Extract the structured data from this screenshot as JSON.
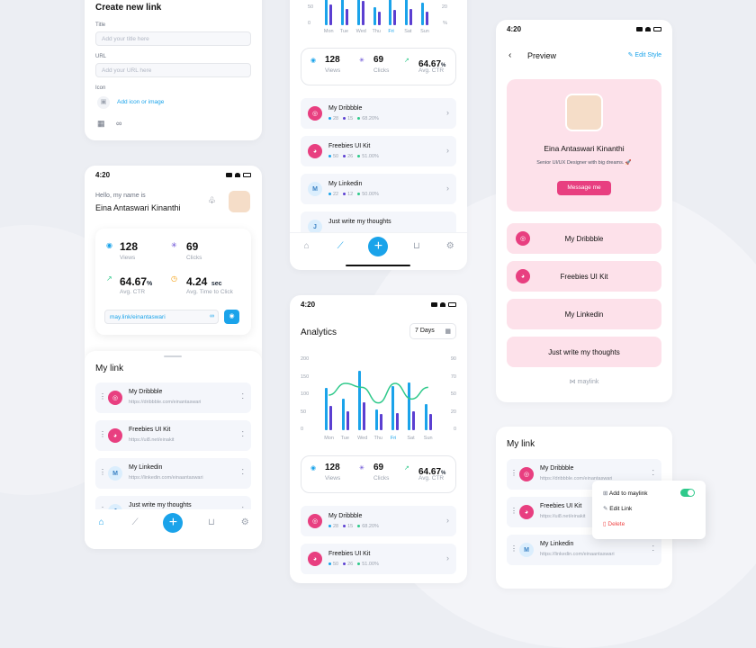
{
  "create": {
    "title": "Create new link",
    "title_label": "Title",
    "title_placeholder": "Add your title here",
    "url_label": "URL",
    "url_placeholder": "Add your URL here",
    "icon_label": "Icon",
    "add_icon": "Add icon or image"
  },
  "status_time": "4:20",
  "home": {
    "hello": "Hello, my name is",
    "name": "Eina Antaswari Kinanthi",
    "stats": {
      "views": "128",
      "views_label": "Views",
      "clicks": "69",
      "clicks_label": "Clicks",
      "ctr": "64.67",
      "ctr_unit": "%",
      "ctr_label": "Avg. CTR",
      "time": "4.24",
      "time_unit": "sec",
      "time_label": "Avg. Time to Click"
    },
    "url": "may.link/einantaswari",
    "mylink_title": "My link"
  },
  "links": [
    {
      "title": "My Dribbble",
      "url": "https://dribbble.com/einantaswari",
      "icon": "dribbble-icon",
      "a": "28",
      "b": "15",
      "c": "68.20%"
    },
    {
      "title": "Freebies UI Kit",
      "url": "https://ui8.net/einakit",
      "icon": "ui8-icon",
      "a": "50",
      "b": "26",
      "c": "51.00%"
    },
    {
      "title": "My Linkedin",
      "url": "https://linkedin.com/einaantaswari",
      "icon": "M",
      "a": "22",
      "b": "12",
      "c": "50.00%"
    },
    {
      "title": "Just write my thoughts",
      "url": "",
      "icon": "J",
      "a": "",
      "b": "",
      "c": ""
    }
  ],
  "analytics": {
    "title": "Analytics",
    "period": "7 Days",
    "days": [
      "Mon",
      "Tue",
      "Wed",
      "Thu",
      "Fri",
      "Sat",
      "Sun"
    ],
    "active_day": "Fri",
    "left_ticks": [
      "200",
      "150",
      "100",
      "50",
      "0"
    ],
    "right_ticks": [
      "90",
      "70",
      "50",
      "20",
      "0"
    ],
    "top_left_tick": "50",
    "top_right_tick": "20",
    "top_zero": "0",
    "top_pct": "%"
  },
  "chart_data": {
    "type": "bar",
    "categories": [
      "Mon",
      "Tue",
      "Wed",
      "Thu",
      "Fri",
      "Sat",
      "Sun"
    ],
    "series": [
      {
        "values": [
          120,
          90,
          170,
          60,
          125,
          135,
          75
        ]
      },
      {
        "values": [
          70,
          55,
          80,
          45,
          50,
          55,
          45
        ]
      },
      {
        "values": [
          45,
          60,
          55,
          35,
          60,
          40,
          55
        ]
      }
    ],
    "ylim": [
      0,
      200
    ],
    "y2lim": [
      0,
      90
    ]
  },
  "preview": {
    "title": "Preview",
    "edit": "Edit Style",
    "name": "Eina Antaswari Kinanthi",
    "bio": "Senior UI/UX Designer with big dreams. 🚀",
    "message": "Message me",
    "buttons": [
      "My Dribbble",
      "Freebies UI Kit",
      "My Linkedin",
      "Just write my thoughts"
    ],
    "brand": "maylink"
  },
  "menu": {
    "add": "Add to maylink",
    "edit": "Edit Link",
    "delete": "Delete"
  },
  "colors": {
    "accent": "#1aa3ea",
    "pink": "#e83f80",
    "bar2": "#5b3fd1",
    "line": "#2fc98b"
  }
}
